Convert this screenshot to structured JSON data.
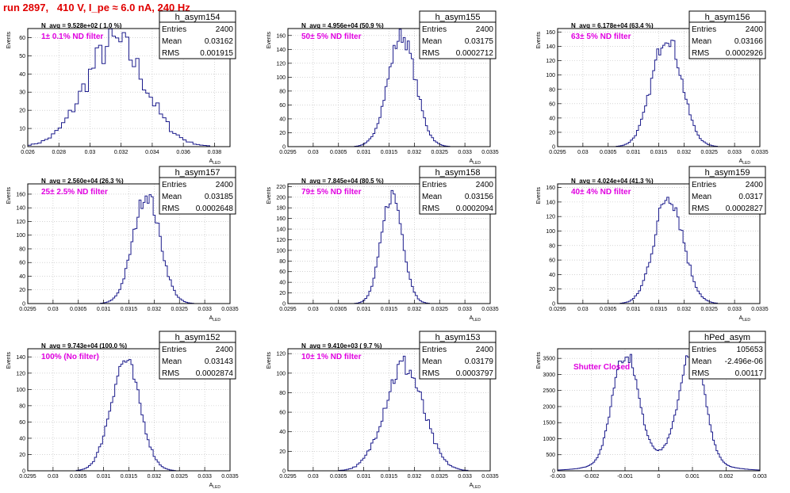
{
  "run_title": "run 2897,   410 V, I_pe ≈ 6.0 nA, 240 Hz",
  "colors": {
    "histogram": "#1c1c8c",
    "filter_label": "#e000e0",
    "title": "#e00000"
  },
  "chart_data": [
    {
      "type": "histogram",
      "name": "h_asym154",
      "stats": {
        "entries_label": "Entries",
        "entries": "2400",
        "mean_label": "Mean",
        "mean": "0.03162",
        "rms_label": "RMS",
        "rms": "0.001915"
      },
      "subtitle": "N_avg = 9.528e+02 ( 1.0 %)",
      "filter_label": "1± 0.1% ND filter",
      "ylabel": "Events",
      "xlabel": "A_LED",
      "xlim": [
        0.026,
        0.039
      ],
      "ylim": [
        0,
        65
      ],
      "xticks": [
        "0.026",
        "0.028",
        "0.03",
        "0.032",
        "0.034",
        "0.036",
        "0.038"
      ],
      "yticks": [
        "0",
        "10",
        "20",
        "30",
        "40",
        "50",
        "60"
      ],
      "shape": {
        "mean": 0.03162,
        "rms": 0.001915,
        "peak": 57,
        "n": 60,
        "noise": 0.18
      }
    },
    {
      "type": "histogram",
      "name": "h_asym155",
      "stats": {
        "entries_label": "Entries",
        "entries": "2400",
        "mean_label": "Mean",
        "mean": "0.03175",
        "rms_label": "RMS",
        "rms": "0.0002712"
      },
      "subtitle": "N_avg = 4.956e+04 (50.9 %)",
      "filter_label": "50± 5% ND filter",
      "ylabel": "Events",
      "xlabel": "A_LED",
      "xlim": [
        0.0295,
        0.0335
      ],
      "ylim": [
        0,
        170
      ],
      "xticks": [
        "0.0295",
        "0.03",
        "0.0305",
        "0.031",
        "0.0315",
        "0.032",
        "0.0325",
        "0.033",
        "0.0335"
      ],
      "yticks": [
        "0",
        "20",
        "40",
        "60",
        "80",
        "100",
        "120",
        "140",
        "160"
      ],
      "shape": {
        "mean": 0.03175,
        "rms": 0.0002712,
        "peak": 160,
        "n": 100,
        "noise": 0.08
      }
    },
    {
      "type": "histogram",
      "name": "h_asym156",
      "stats": {
        "entries_label": "Entries",
        "entries": "2400",
        "mean_label": "Mean",
        "mean": "0.03166",
        "rms_label": "RMS",
        "rms": "0.0002926"
      },
      "subtitle": "N_avg = 6.178e+04 (63.4 %)",
      "filter_label": "63± 5% ND filter",
      "ylabel": "Events",
      "xlabel": "A_LED",
      "xlim": [
        0.0295,
        0.0335
      ],
      "ylim": [
        0,
        165
      ],
      "xticks": [
        "0.0295",
        "0.03",
        "0.0305",
        "0.031",
        "0.0315",
        "0.032",
        "0.0325",
        "0.033",
        "0.0335"
      ],
      "yticks": [
        "0",
        "20",
        "40",
        "60",
        "80",
        "100",
        "120",
        "140",
        "160"
      ],
      "shape": {
        "mean": 0.03166,
        "rms": 0.0002926,
        "peak": 155,
        "n": 100,
        "noise": 0.08
      }
    },
    {
      "type": "histogram",
      "name": "h_asym157",
      "stats": {
        "entries_label": "Entries",
        "entries": "2400",
        "mean_label": "Mean",
        "mean": "0.03185",
        "rms_label": "RMS",
        "rms": "0.0002648"
      },
      "subtitle": "N_avg = 2.560e+04 (26.3 %)",
      "filter_label": "25± 2.5% ND filter",
      "ylabel": "Events",
      "xlabel": "A_LED",
      "xlim": [
        0.0295,
        0.0335
      ],
      "ylim": [
        0,
        175
      ],
      "xticks": [
        "0.0295",
        "0.03",
        "0.0305",
        "0.031",
        "0.0315",
        "0.032",
        "0.0325",
        "0.033",
        "0.0335"
      ],
      "yticks": [
        "0",
        "20",
        "40",
        "60",
        "80",
        "100",
        "120",
        "140",
        "160"
      ],
      "shape": {
        "mean": 0.03185,
        "rms": 0.0002648,
        "peak": 160,
        "n": 100,
        "noise": 0.08
      }
    },
    {
      "type": "histogram",
      "name": "h_asym158",
      "stats": {
        "entries_label": "Entries",
        "entries": "2400",
        "mean_label": "Mean",
        "mean": "0.03156",
        "rms_label": "RMS",
        "rms": "0.0002094"
      },
      "subtitle": "N_avg = 7.845e+04 (80.5 %)",
      "filter_label": "79± 5% ND filter",
      "ylabel": "Events",
      "xlabel": "A_LED",
      "xlim": [
        0.0295,
        0.0335
      ],
      "ylim": [
        0,
        225
      ],
      "xticks": [
        "0.0295",
        "0.03",
        "0.0305",
        "0.031",
        "0.0315",
        "0.032",
        "0.0325",
        "0.033",
        "0.0335"
      ],
      "yticks": [
        "0",
        "20",
        "40",
        "60",
        "80",
        "100",
        "120",
        "140",
        "160",
        "180",
        "200",
        "220"
      ],
      "shape": {
        "mean": 0.03156,
        "rms": 0.0002094,
        "peak": 205,
        "n": 100,
        "noise": 0.08
      }
    },
    {
      "type": "histogram",
      "name": "h_asym159",
      "stats": {
        "entries_label": "Entries",
        "entries": "2400",
        "mean_label": "Mean",
        "mean": "0.0317",
        "rms_label": "RMS",
        "rms": "0.0002827"
      },
      "subtitle": "N_avg = 4.024e+04 (41.3 %)",
      "filter_label": "40± 4% ND filter",
      "ylabel": "Events",
      "xlabel": "A_LED",
      "xlim": [
        0.0295,
        0.0335
      ],
      "ylim": [
        0,
        165
      ],
      "xticks": [
        "0.0295",
        "0.03",
        "0.0305",
        "0.031",
        "0.0315",
        "0.032",
        "0.0325",
        "0.033",
        "0.0335"
      ],
      "yticks": [
        "0",
        "20",
        "40",
        "60",
        "80",
        "100",
        "120",
        "140",
        "160"
      ],
      "shape": {
        "mean": 0.0317,
        "rms": 0.0002827,
        "peak": 150,
        "n": 100,
        "noise": 0.1
      }
    },
    {
      "type": "histogram",
      "name": "h_asym152",
      "stats": {
        "entries_label": "Entries",
        "entries": "2400",
        "mean_label": "Mean",
        "mean": "0.03143",
        "rms_label": "RMS",
        "rms": "0.0002874"
      },
      "subtitle": "N_avg = 9.743e+04 (100.0 %)",
      "filter_label": "100% (No filter)",
      "ylabel": "Events",
      "xlabel": "A_LED",
      "xlim": [
        0.0295,
        0.0335
      ],
      "ylim": [
        0,
        150
      ],
      "xticks": [
        "0.0295",
        "0.03",
        "0.0305",
        "0.031",
        "0.0315",
        "0.032",
        "0.0325",
        "0.033",
        "0.0335"
      ],
      "yticks": [
        "0",
        "20",
        "40",
        "60",
        "80",
        "100",
        "120",
        "140"
      ],
      "shape": {
        "mean": 0.03143,
        "rms": 0.0002874,
        "peak": 135,
        "n": 100,
        "noise": 0.08
      }
    },
    {
      "type": "histogram",
      "name": "h_asym153",
      "stats": {
        "entries_label": "Entries",
        "entries": "2400",
        "mean_label": "Mean",
        "mean": "0.03179",
        "rms_label": "RMS",
        "rms": "0.0003797"
      },
      "subtitle": "N_avg = 9.410e+03 ( 9.7 %)",
      "filter_label": "10± 1% ND filter",
      "ylabel": "Events",
      "xlabel": "A_LED",
      "xlim": [
        0.0295,
        0.0335
      ],
      "ylim": [
        0,
        125
      ],
      "xticks": [
        "0.0295",
        "0.03",
        "0.0305",
        "0.031",
        "0.0315",
        "0.032",
        "0.0325",
        "0.033",
        "0.0335"
      ],
      "yticks": [
        "0",
        "20",
        "40",
        "60",
        "80",
        "100",
        "120"
      ],
      "shape": {
        "mean": 0.03179,
        "rms": 0.0003797,
        "peak": 108,
        "n": 100,
        "noise": 0.12
      }
    },
    {
      "type": "histogram",
      "name": "hPed_asym",
      "stats": {
        "entries_label": "Entries",
        "entries": "105653",
        "mean_label": "Mean",
        "mean": "-2.496e-06",
        "rms_label": "RMS",
        "rms": "0.00117"
      },
      "subtitle": "",
      "filter_label": "Shutter Closed",
      "ylabel": "Events",
      "xlabel": "",
      "xlim": [
        -0.003,
        0.003
      ],
      "ylim": [
        0,
        3800
      ],
      "xticks": [
        "-0.003",
        "-0.002",
        "-0.001",
        "0",
        "0.001",
        "0.002",
        "0.003"
      ],
      "yticks": [
        "0",
        "500",
        "1000",
        "1500",
        "2000",
        "2500",
        "3000",
        "3500"
      ],
      "shape": {
        "bimodal": true,
        "peaks": [
          -0.001,
          0.001
        ],
        "sigma": 0.00036,
        "peak": 3500,
        "trough": 600,
        "n": 120,
        "noise": 0.04
      }
    }
  ]
}
